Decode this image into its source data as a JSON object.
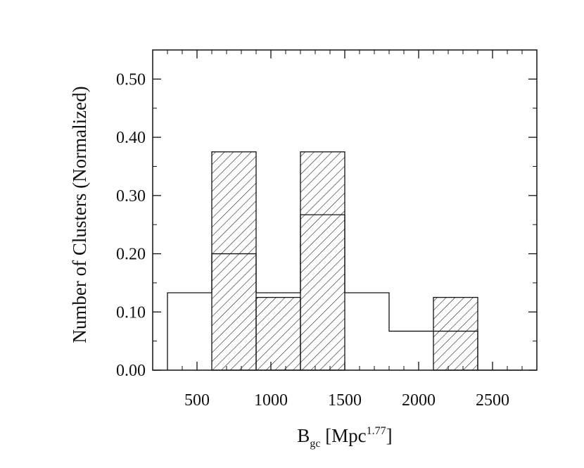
{
  "chart_data": {
    "type": "bar",
    "subtype": "step-histogram",
    "xlabel": {
      "main": "B",
      "subscript": "gc",
      "unit_open": " [Mpc",
      "unit_superscript": "1.77",
      "unit_close": "]"
    },
    "ylabel": "Number of Clusters (Normalized)",
    "xlim": [
      200,
      2800
    ],
    "ylim": [
      0,
      0.55
    ],
    "x_ticks": [
      500,
      1000,
      1500,
      2000,
      2500
    ],
    "y_ticks": [
      0.0,
      0.1,
      0.2,
      0.3,
      0.4,
      0.5
    ],
    "y_tick_labels": [
      "0.00",
      "0.10",
      "0.20",
      "0.30",
      "0.40",
      "0.50"
    ],
    "grid": false,
    "series": [
      {
        "style": "open-step",
        "bins": [
          {
            "x0": 300,
            "x1": 600,
            "value": 0.133
          },
          {
            "x0": 600,
            "x1": 900,
            "value": 0.2
          },
          {
            "x0": 900,
            "x1": 1200,
            "value": 0.133
          },
          {
            "x0": 1200,
            "x1": 1500,
            "value": 0.267
          },
          {
            "x0": 1500,
            "x1": 1800,
            "value": 0.133
          },
          {
            "x0": 1800,
            "x1": 2100,
            "value": 0.067
          },
          {
            "x0": 2100,
            "x1": 2400,
            "value": 0.067
          },
          {
            "x0": 2400,
            "x1": 2700,
            "value": 0.0
          }
        ]
      },
      {
        "style": "hatched",
        "bins": [
          {
            "x0": 600,
            "x1": 900,
            "value": 0.375
          },
          {
            "x0": 900,
            "x1": 1200,
            "value": 0.125
          },
          {
            "x0": 1200,
            "x1": 1500,
            "value": 0.375
          },
          {
            "x0": 2100,
            "x1": 2400,
            "value": 0.125
          }
        ]
      }
    ]
  }
}
